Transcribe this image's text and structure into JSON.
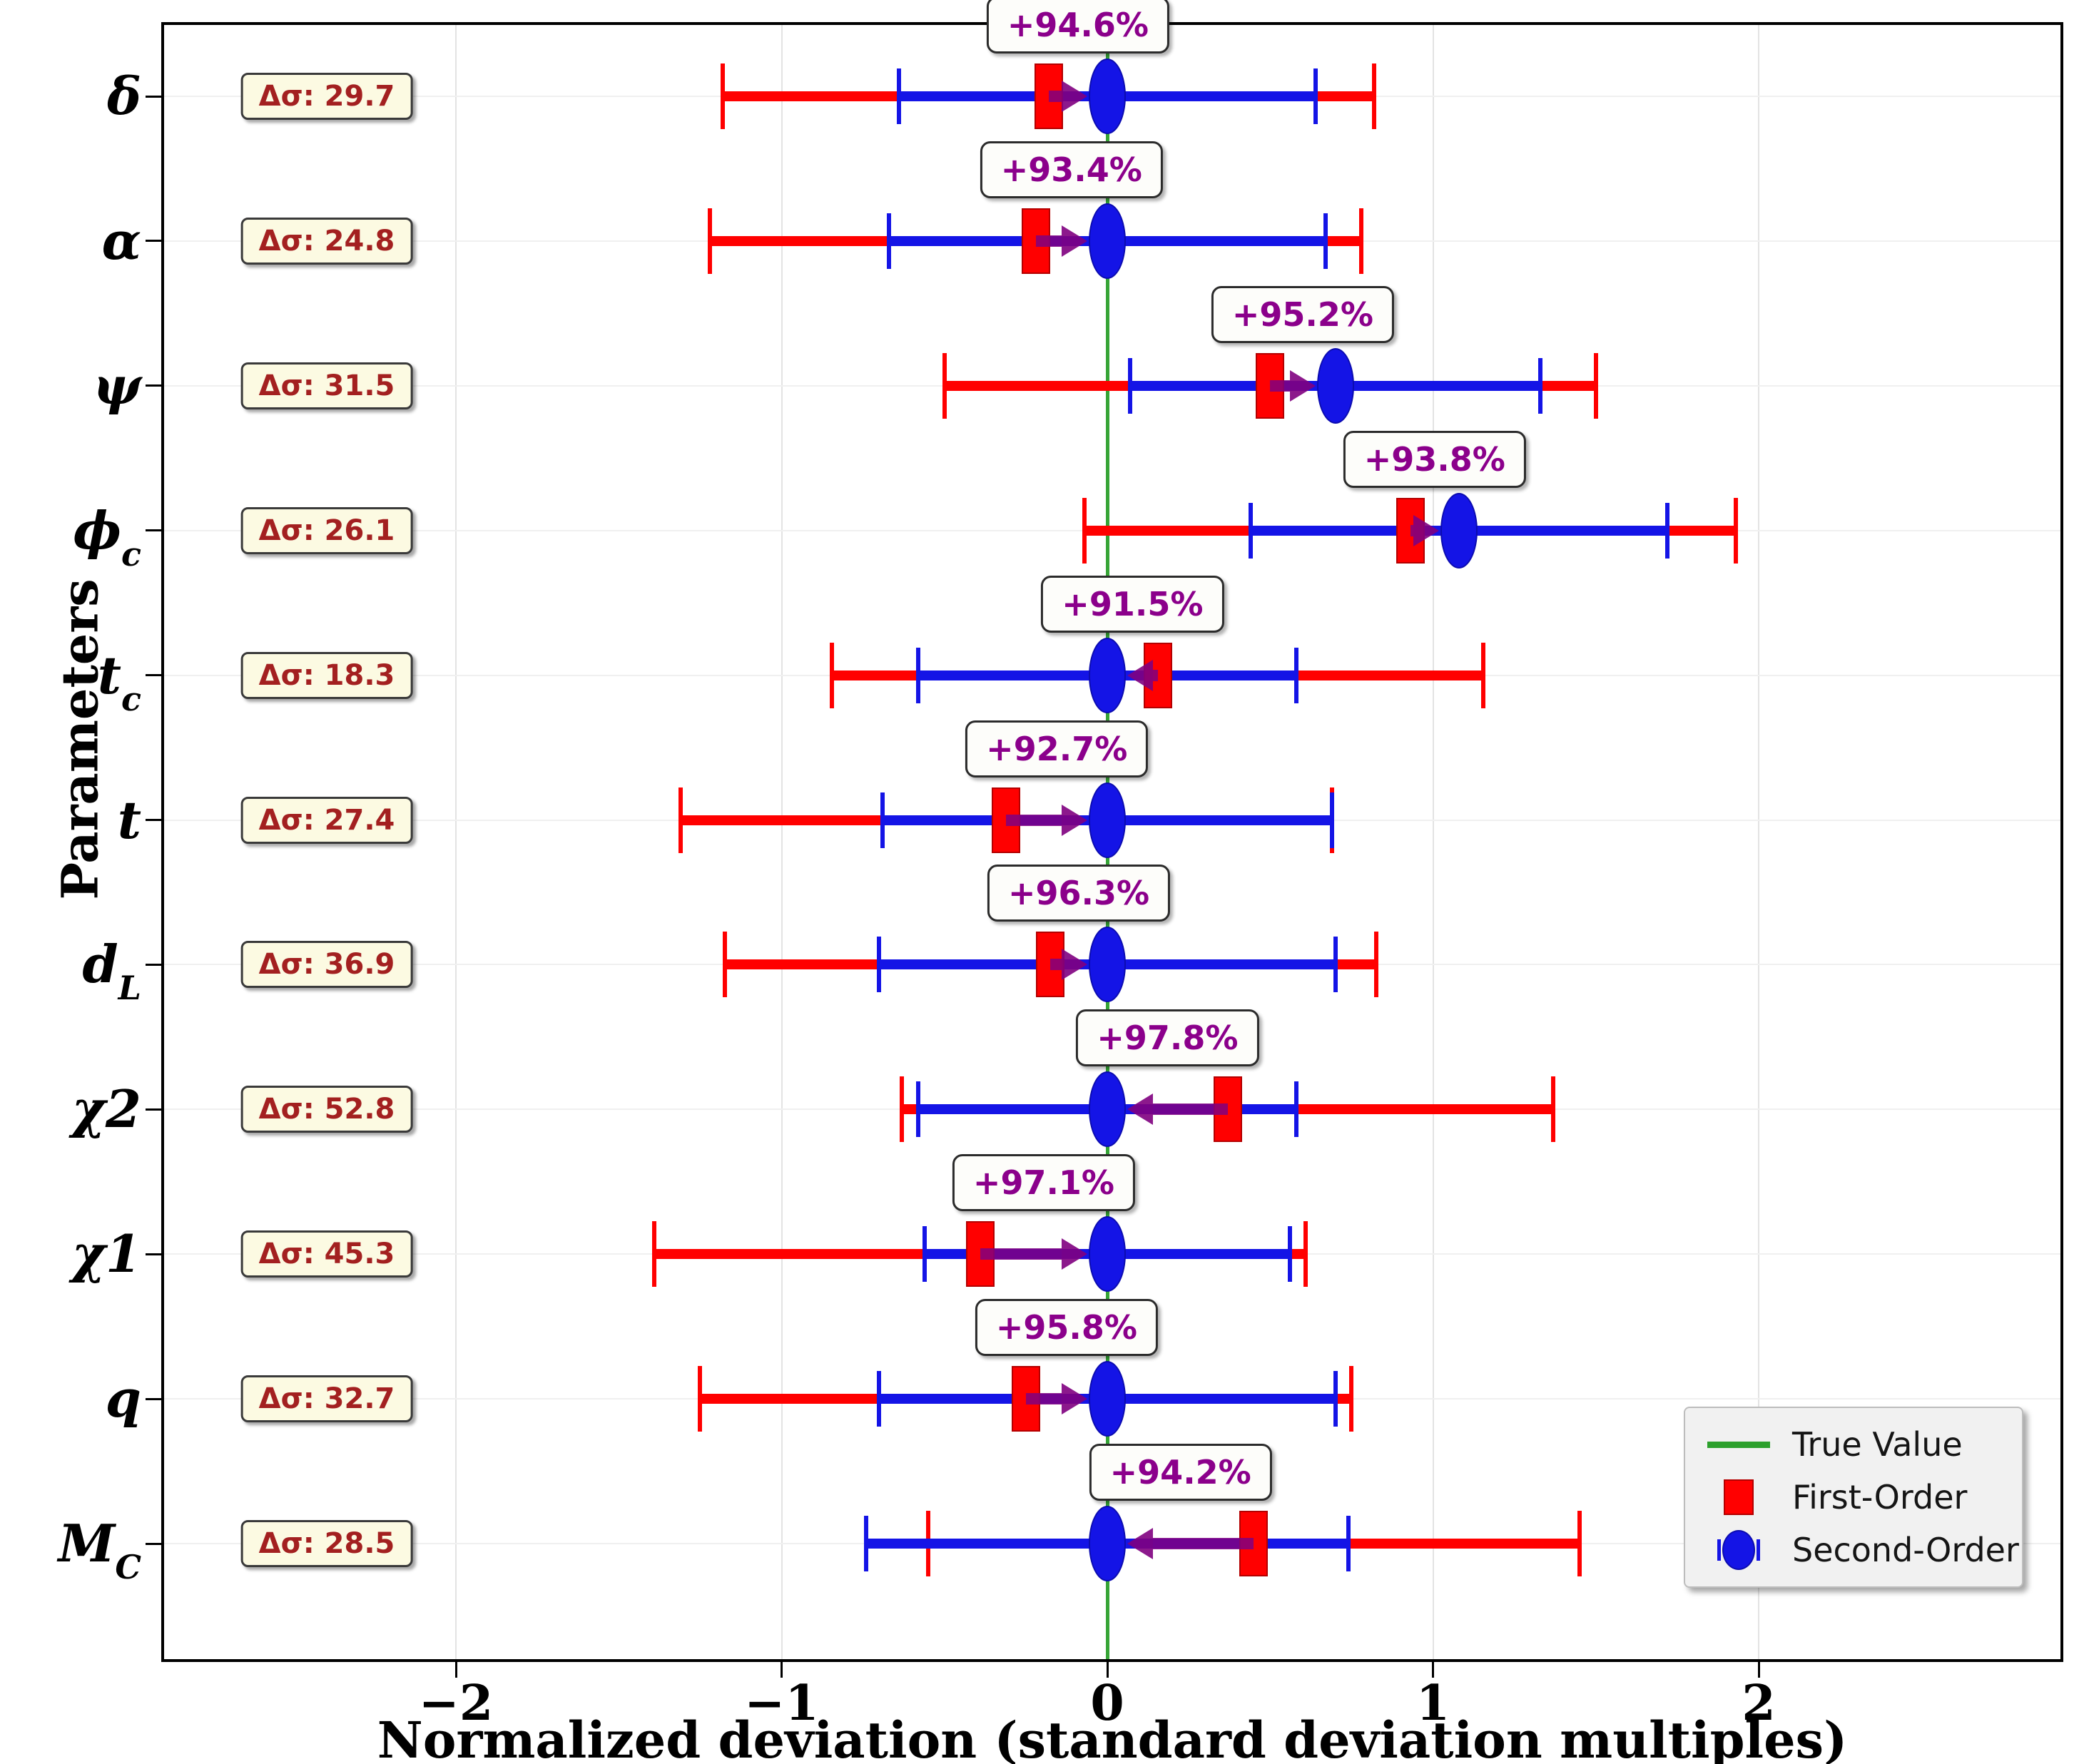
{
  "chart_data": {
    "type": "errorbar",
    "title": "",
    "xlabel": "Normalized deviation (standard deviation multiples)",
    "ylabel": "Parameters",
    "xticks": [
      -2,
      -1,
      0,
      1,
      2
    ],
    "xlim": [
      -2.9,
      2.94
    ],
    "grid": true,
    "true_value": 0,
    "legend_position": "lower right",
    "legend_items": [
      {
        "label": "True Value",
        "marker": "green-line"
      },
      {
        "label": "First-Order",
        "marker": "red-square"
      },
      {
        "label": "Second-Order",
        "marker": "blue-circle"
      }
    ],
    "colors": {
      "first_order": "#ff0000",
      "second_order": "#1414e6",
      "true_line": "#2ca02c",
      "arrow": "#800080",
      "improvement_text": "#8b008b",
      "delta_sigma_text": "#a32020",
      "delta_sigma_bg": "#fcfae2"
    },
    "rows": [
      {
        "param": "δ",
        "param_sub": "",
        "delta_sigma": "Δσ: 29.7",
        "improvement": "+94.6%",
        "first_order": {
          "value": -0.18,
          "err": 1.0
        },
        "second_order": {
          "value": 0.0,
          "err": 0.64
        }
      },
      {
        "param": "α",
        "param_sub": "",
        "delta_sigma": "Δσ: 24.8",
        "improvement": "+93.4%",
        "first_order": {
          "value": -0.22,
          "err": 1.0
        },
        "second_order": {
          "value": 0.0,
          "err": 0.67
        }
      },
      {
        "param": "ψ",
        "param_sub": "",
        "delta_sigma": "Δσ: 31.5",
        "improvement": "+95.2%",
        "first_order": {
          "value": 0.5,
          "err": 1.0
        },
        "second_order": {
          "value": 0.7,
          "err": 0.63
        }
      },
      {
        "param": "ϕ",
        "param_sub": "c",
        "delta_sigma": "Δσ: 26.1",
        "improvement": "+93.8%",
        "first_order": {
          "value": 0.93,
          "err": 1.0
        },
        "second_order": {
          "value": 1.08,
          "err": 0.64
        }
      },
      {
        "param": "t",
        "param_sub": "c",
        "delta_sigma": "Δσ: 18.3",
        "improvement": "+91.5%",
        "first_order": {
          "value": 0.155,
          "err": 1.0
        },
        "second_order": {
          "value": 0.0,
          "err": 0.58
        }
      },
      {
        "param": "t",
        "param_sub": "",
        "delta_sigma": "Δσ: 27.4",
        "improvement": "+92.7%",
        "first_order": {
          "value": -0.31,
          "err": 1.0
        },
        "second_order": {
          "value": 0.0,
          "err": 0.69
        }
      },
      {
        "param": "d",
        "param_sub": "L",
        "delta_sigma": "Δσ: 36.9",
        "improvement": "+96.3%",
        "first_order": {
          "value": -0.175,
          "err": 1.0
        },
        "second_order": {
          "value": 0.0,
          "err": 0.7
        }
      },
      {
        "param": "χ2",
        "param_sub": "",
        "delta_sigma": "Δσ: 52.8",
        "improvement": "+97.8%",
        "first_order": {
          "value": 0.37,
          "err": 1.0
        },
        "second_order": {
          "value": 0.0,
          "err": 0.58
        }
      },
      {
        "param": "χ1",
        "param_sub": "",
        "delta_sigma": "Δσ: 45.3",
        "improvement": "+97.1%",
        "first_order": {
          "value": -0.39,
          "err": 1.0
        },
        "second_order": {
          "value": 0.0,
          "err": 0.56
        }
      },
      {
        "param": "q",
        "param_sub": "",
        "delta_sigma": "Δσ: 32.7",
        "improvement": "+95.8%",
        "first_order": {
          "value": -0.25,
          "err": 1.0
        },
        "second_order": {
          "value": 0.0,
          "err": 0.7
        }
      },
      {
        "param": "M",
        "param_sub": "C",
        "delta_sigma": "Δσ: 28.5",
        "improvement": "+94.2%",
        "first_order": {
          "value": 0.45,
          "err": 1.0
        },
        "second_order": {
          "value": 0.0,
          "err": 0.74
        }
      }
    ]
  }
}
